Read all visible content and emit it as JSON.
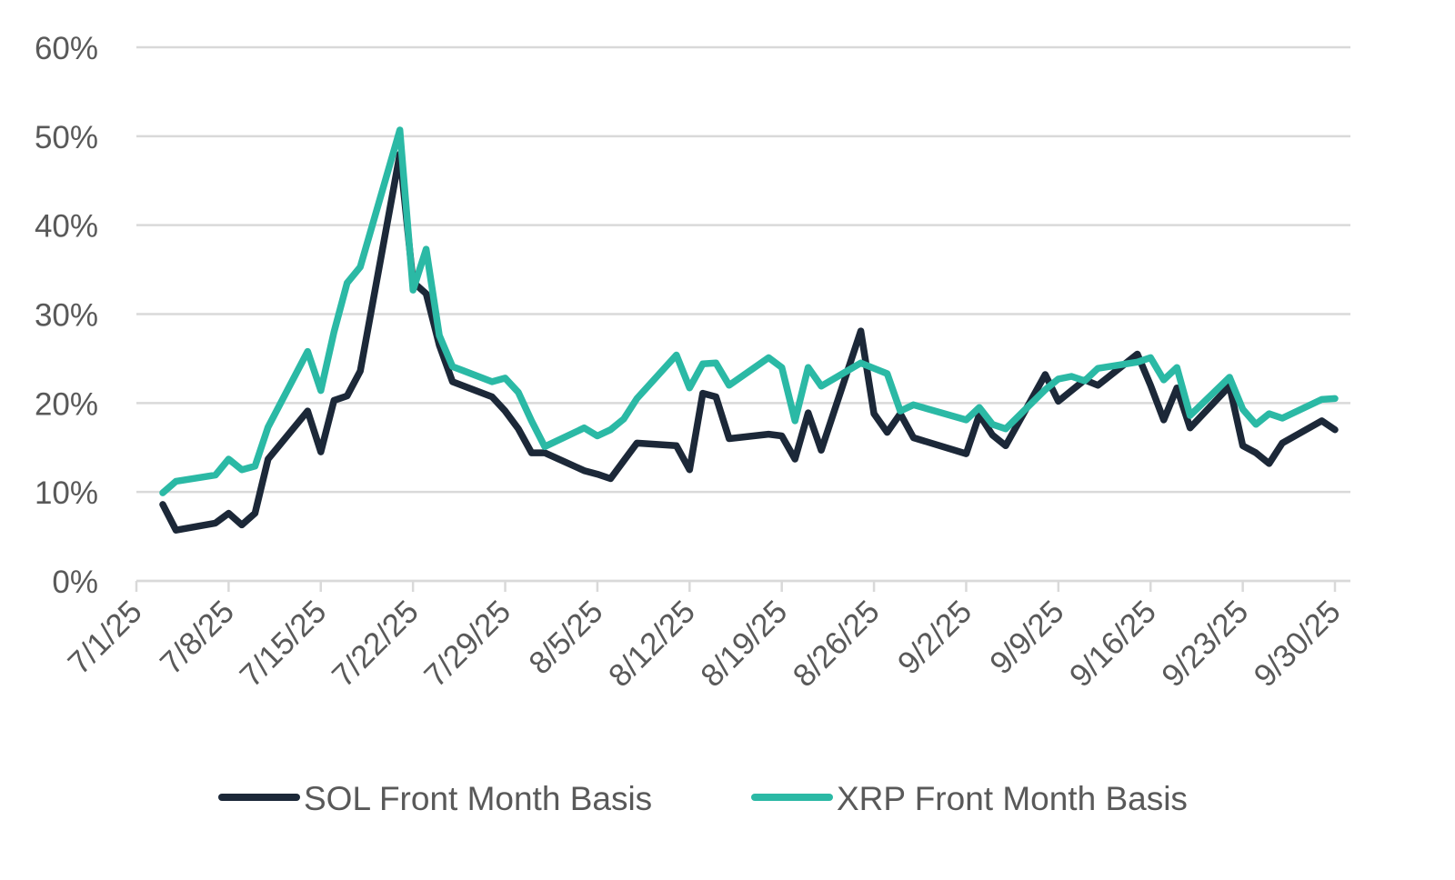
{
  "chart_data": {
    "type": "line",
    "title": "",
    "xlabel": "",
    "ylabel": "",
    "ylim": [
      0,
      60
    ],
    "y_ticks": [
      "0%",
      "10%",
      "20%",
      "30%",
      "40%",
      "50%",
      "60%"
    ],
    "y_tick_values": [
      0,
      10,
      20,
      30,
      40,
      50,
      60
    ],
    "x_ticks": [
      "7/1/25",
      "7/8/25",
      "7/15/25",
      "7/22/25",
      "7/29/25",
      "8/5/25",
      "8/12/25",
      "8/19/25",
      "8/26/25",
      "9/2/25",
      "9/9/25",
      "9/16/25",
      "9/23/25",
      "9/30/25"
    ],
    "xlim": [
      "2025-07-01",
      "2025-09-30"
    ],
    "grid": "horizontal",
    "legend_position": "bottom",
    "x": [
      "2025-07-03",
      "2025-07-04",
      "2025-07-07",
      "2025-07-08",
      "2025-07-09",
      "2025-07-10",
      "2025-07-11",
      "2025-07-14",
      "2025-07-15",
      "2025-07-16",
      "2025-07-17",
      "2025-07-18",
      "2025-07-21",
      "2025-07-22",
      "2025-07-23",
      "2025-07-24",
      "2025-07-25",
      "2025-07-28",
      "2025-07-29",
      "2025-07-30",
      "2025-07-31",
      "2025-08-01",
      "2025-08-04",
      "2025-08-05",
      "2025-08-06",
      "2025-08-07",
      "2025-08-08",
      "2025-08-11",
      "2025-08-12",
      "2025-08-13",
      "2025-08-14",
      "2025-08-15",
      "2025-08-18",
      "2025-08-19",
      "2025-08-20",
      "2025-08-21",
      "2025-08-22",
      "2025-08-25",
      "2025-08-26",
      "2025-08-27",
      "2025-08-28",
      "2025-08-29",
      "2025-09-02",
      "2025-09-03",
      "2025-09-04",
      "2025-09-05",
      "2025-09-08",
      "2025-09-09",
      "2025-09-10",
      "2025-09-11",
      "2025-09-12",
      "2025-09-15",
      "2025-09-16",
      "2025-09-17",
      "2025-09-18",
      "2025-09-19",
      "2025-09-22",
      "2025-09-23",
      "2025-09-24",
      "2025-09-25",
      "2025-09-26",
      "2025-09-29",
      "2025-09-30"
    ],
    "series": [
      {
        "name": "SOL Front Month Basis",
        "color": "#1c2838",
        "values": [
          8.6,
          5.7,
          6.5,
          7.6,
          6.3,
          7.6,
          13.7,
          19.1,
          14.5,
          20.3,
          20.8,
          23.6,
          48,
          33.6,
          32.3,
          26.5,
          22.4,
          20.7,
          19.1,
          17.1,
          14.4,
          14.4,
          12.4,
          12,
          11.5,
          13.5,
          15.5,
          15.2,
          12.5,
          21.1,
          20.7,
          16,
          16.5,
          16.3,
          13.7,
          18.9,
          14.7,
          28.1,
          18.8,
          16.7,
          18.8,
          16.1,
          14.3,
          18.7,
          16.4,
          15.2,
          23.2,
          20.2,
          21.4,
          22.6,
          22,
          25.5,
          22,
          18.1,
          21.7,
          17.2,
          21.9,
          15.2,
          14.4,
          13.2,
          15.5,
          18,
          17
        ]
      },
      {
        "name": "XRP Front Month Basis",
        "color": "#2bb9a5",
        "values": [
          9.9,
          11.2,
          11.9,
          13.7,
          12.5,
          12.9,
          17.3,
          25.8,
          21.4,
          28,
          33.5,
          35.3,
          50.7,
          32.7,
          37.3,
          27.6,
          24.1,
          22.4,
          22.8,
          21.2,
          18,
          15.1,
          17.2,
          16.3,
          17,
          18.2,
          20.5,
          25.4,
          21.7,
          24.4,
          24.5,
          22,
          25.1,
          24,
          18,
          24,
          21.9,
          24.5,
          23.9,
          23.3,
          19.1,
          19.8,
          18.1,
          19.5,
          17.6,
          17.1,
          21.5,
          22.7,
          23,
          22.5,
          23.9,
          24.6,
          25.1,
          22.6,
          24,
          18.6,
          22.9,
          19.3,
          17.6,
          18.8,
          18.3,
          20.4,
          20.5
        ]
      }
    ]
  }
}
